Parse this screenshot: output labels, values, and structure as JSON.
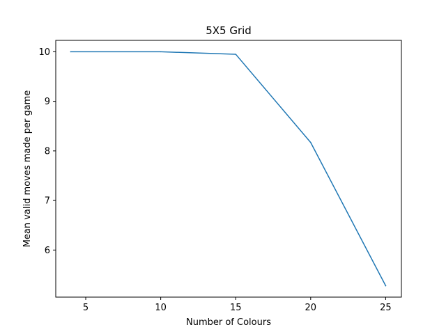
{
  "chart_data": {
    "type": "line",
    "title": "5X5 Grid",
    "xlabel": "Number of Colours",
    "ylabel": "Mean valid moves made per game",
    "x": [
      4,
      10,
      15,
      20,
      25
    ],
    "series": [
      {
        "values": [
          10.0,
          10.0,
          9.95,
          8.17,
          5.28
        ]
      }
    ],
    "xlim": [
      3.0,
      26.05
    ],
    "ylim": [
      5.05,
      10.23
    ],
    "xticks": [
      5,
      10,
      15,
      20,
      25
    ],
    "yticks": [
      6,
      7,
      8,
      9,
      10
    ],
    "grid": false,
    "line_color": "#1f77b4"
  }
}
